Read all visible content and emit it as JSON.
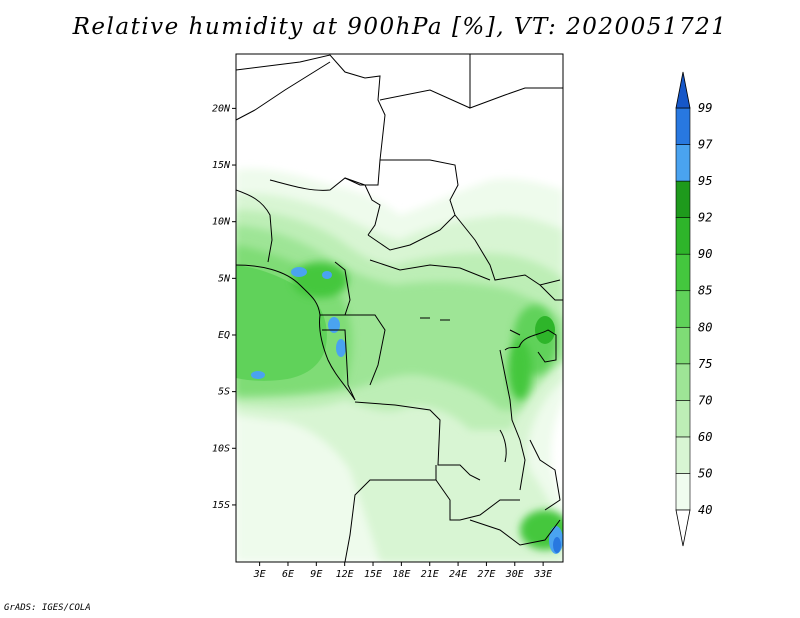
{
  "title": "Relative humidity at 900hPa [%], VT: 2020051721",
  "credit": "GrADS: IGES/COLA",
  "map": {
    "lat_labels": [
      {
        "label": "20N",
        "lat": 20
      },
      {
        "label": "15N",
        "lat": 15
      },
      {
        "label": "10N",
        "lat": 10
      },
      {
        "label": "5N",
        "lat": 5
      },
      {
        "label": "EQ",
        "lat": 0
      },
      {
        "label": "5S",
        "lat": -5
      },
      {
        "label": "10S",
        "lat": -10
      },
      {
        "label": "15S",
        "lat": -15
      }
    ],
    "lon_labels": [
      {
        "label": "3E",
        "lon": 3
      },
      {
        "label": "6E",
        "lon": 6
      },
      {
        "label": "9E",
        "lon": 9
      },
      {
        "label": "12E",
        "lon": 12
      },
      {
        "label": "15E",
        "lon": 15
      },
      {
        "label": "18E",
        "lon": 18
      },
      {
        "label": "21E",
        "lon": 21
      },
      {
        "label": "24E",
        "lon": 24
      },
      {
        "label": "27E",
        "lon": 27
      },
      {
        "label": "30E",
        "lon": 30
      },
      {
        "label": "33E",
        "lon": 33
      }
    ]
  },
  "colorbar": {
    "levels": [
      "40",
      "50",
      "60",
      "70",
      "75",
      "80",
      "85",
      "90",
      "92",
      "95",
      "97",
      "99"
    ],
    "colors": [
      "#f0fcef",
      "#d8f5d3",
      "#bdeeb6",
      "#9ee596",
      "#7fdc76",
      "#60d25a",
      "#44c73e",
      "#2eb52a",
      "#1e9a1c",
      "#4aa3f0",
      "#2878e0",
      "#1657c8"
    ]
  }
}
